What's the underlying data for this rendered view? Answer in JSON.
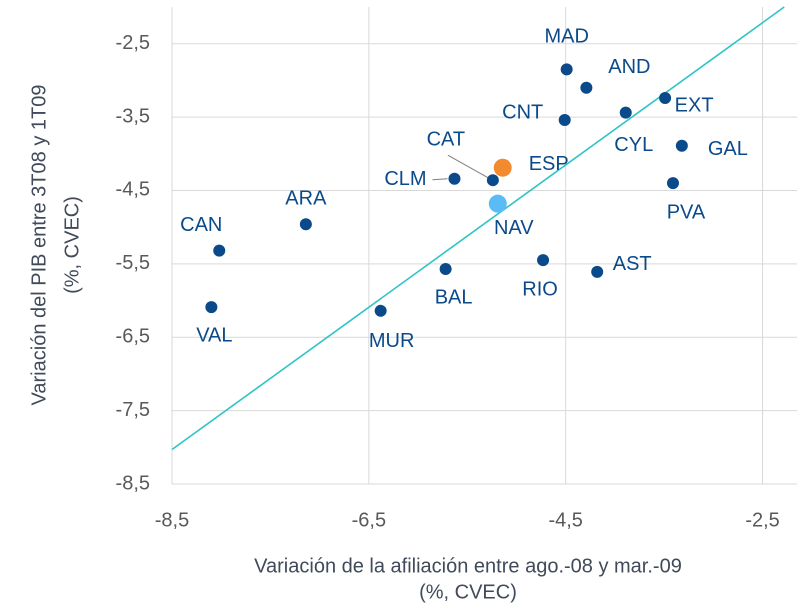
{
  "chart_data": {
    "type": "scatter",
    "x_label": [
      "Variación de la afiliación entre ago.-08 y mar.-09",
      "(%, CVEC)"
    ],
    "y_label": [
      "Variación del PIB entre 3T08 y 1T09",
      "(%, CVEC)"
    ],
    "labels": [
      "MAD",
      "AND",
      "CNT",
      "CYL",
      "EXT",
      "GAL",
      "PVA",
      "CLM",
      "CAT",
      "ESP",
      "NAV",
      "ARA",
      "CAN",
      "BAL",
      "RIO",
      "AST",
      "VAL",
      "MUR"
    ],
    "x": [
      -4.49,
      -4.29,
      -4.51,
      -3.89,
      -3.49,
      -3.32,
      -3.41,
      -5.63,
      -5.24,
      -5.14,
      -5.19,
      -7.14,
      -8.02,
      -5.72,
      -4.73,
      -4.18,
      -8.1,
      -6.38
    ],
    "y": [
      -2.85,
      -3.1,
      -3.54,
      -3.44,
      -3.24,
      -3.89,
      -4.4,
      -4.34,
      -4.36,
      -4.19,
      -4.68,
      -4.96,
      -5.32,
      -5.57,
      -5.45,
      -5.61,
      -6.09,
      -6.14
    ],
    "colors": [
      "#0b4a8a",
      "#0b4a8a",
      "#0b4a8a",
      "#0b4a8a",
      "#0b4a8a",
      "#0b4a8a",
      "#0b4a8a",
      "#0b4a8a",
      "#0b4a8a",
      "#f28b30",
      "#5bbcf5",
      "#0b4a8a",
      "#0b4a8a",
      "#0b4a8a",
      "#0b4a8a",
      "#0b4a8a",
      "#0b4a8a",
      "#0b4a8a"
    ],
    "trendline": {
      "x": [
        -8.5,
        -2.28
      ],
      "y": [
        -8.03,
        -2.0
      ],
      "color": "#2ec4c6"
    },
    "xlim": [
      -8.5,
      -2.15
    ],
    "ylim": [
      -8.5,
      -2.0
    ],
    "xticks": [
      {
        "value": -8.5,
        "label": "-8,5"
      },
      {
        "value": -6.5,
        "label": "-6,5"
      },
      {
        "value": -4.5,
        "label": "-4,5"
      },
      {
        "value": -2.5,
        "label": "-2,5"
      }
    ],
    "yticks": [
      {
        "value": -2.5,
        "label": "-2,5"
      },
      {
        "value": -3.5,
        "label": "-3,5"
      },
      {
        "value": -4.5,
        "label": "-4,5"
      },
      {
        "value": -5.5,
        "label": "-5,5"
      },
      {
        "value": -6.5,
        "label": "-6,5"
      },
      {
        "value": -7.5,
        "label": "-7,5"
      },
      {
        "value": -8.5,
        "label": "-8,5"
      }
    ],
    "grid": true
  }
}
